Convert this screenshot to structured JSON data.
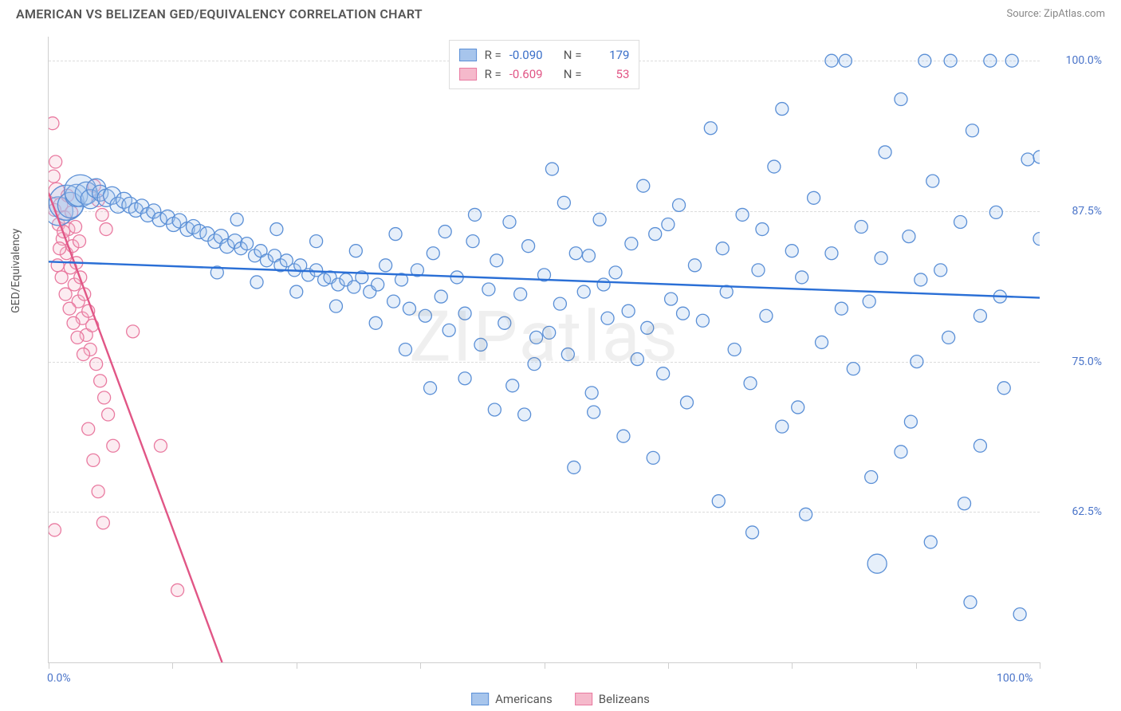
{
  "title": "AMERICAN VS BELIZEAN GED/EQUIVALENCY CORRELATION CHART",
  "source": "Source: ZipAtlas.com",
  "watermark": "ZIPatlas",
  "ylabel": "GED/Equivalency",
  "chart": {
    "type": "scatter",
    "background_color": "#ffffff",
    "grid_color": "#dcdcdc",
    "axis_color": "#cfcfcf",
    "tick_label_color": "#4a74c9",
    "xlim": [
      0,
      100
    ],
    "ylim": [
      50,
      102
    ],
    "x_ticks": [
      0,
      12.5,
      25,
      37.5,
      50,
      62.5,
      75,
      87.5,
      100
    ],
    "x_tick_labels": {
      "0": "0.0%",
      "100": "100.0%"
    },
    "y_gridlines": [
      62.5,
      75,
      87.5,
      100
    ],
    "y_tick_labels": {
      "62.5": "62.5%",
      "75": "75.0%",
      "87.5": "87.5%",
      "100": "100.0%"
    },
    "marker_stroke_width": 1.3,
    "marker_fill_opacity": 0.28,
    "trend_line_width": 2.4,
    "label_fontsize": 14,
    "title_fontsize": 16
  },
  "legend_top": {
    "border_color": "#dddddd",
    "rows": [
      {
        "swatch_fill": "#a7c5ec",
        "swatch_border": "#5a8fd6",
        "r_label": "R =",
        "r_value": "-0.090",
        "r_color": "#3a6fc9",
        "n_label": "N =",
        "n_value": "179",
        "n_color": "#3a6fc9"
      },
      {
        "swatch_fill": "#f5b9cb",
        "swatch_border": "#e97aa0",
        "r_label": "R =",
        "r_value": "-0.609",
        "r_color": "#e15686",
        "n_label": "N =",
        "n_value": "53",
        "n_color": "#e15686"
      }
    ]
  },
  "legend_bottom": {
    "items": [
      {
        "swatch_fill": "#a7c5ec",
        "swatch_border": "#5a8fd6",
        "label": "Americans"
      },
      {
        "swatch_fill": "#f5b9cb",
        "swatch_border": "#e97aa0",
        "label": "Belizeans"
      }
    ]
  },
  "series": {
    "americans": {
      "fill": "#a7c5ec",
      "stroke": "#5a8fd6",
      "trend_color": "#2a6fd6",
      "trend": {
        "x1": 0,
        "y1": 83.3,
        "x2": 100,
        "y2": 80.3
      },
      "default_r": 8,
      "points": [
        [
          1.0,
          87.5,
          18
        ],
        [
          1.8,
          88.2,
          22
        ],
        [
          2.2,
          88.0,
          16
        ],
        [
          2.8,
          88.8,
          14
        ],
        [
          3.2,
          89.2,
          20
        ],
        [
          3.8,
          89.0,
          14
        ],
        [
          4.2,
          88.5,
          12
        ],
        [
          4.8,
          89.4,
          12
        ],
        [
          5.2,
          89.0,
          10
        ],
        [
          5.8,
          88.6,
          11
        ],
        [
          6.4,
          88.8,
          11
        ],
        [
          7.0,
          88.0,
          10
        ],
        [
          7.6,
          88.4,
          10
        ],
        [
          8.2,
          88.0,
          10
        ],
        [
          8.8,
          87.6,
          9
        ],
        [
          9.4,
          87.9,
          9
        ],
        [
          10.0,
          87.2,
          9
        ],
        [
          10.6,
          87.5,
          9
        ],
        [
          11.2,
          86.8,
          9
        ],
        [
          12.0,
          87.0,
          9
        ],
        [
          12.6,
          86.4,
          9
        ],
        [
          13.2,
          86.7,
          9
        ],
        [
          14.0,
          86.0,
          9
        ],
        [
          14.6,
          86.2,
          9
        ],
        [
          15.2,
          85.8,
          9
        ],
        [
          16.0,
          85.6,
          9
        ],
        [
          16.8,
          85.0,
          9
        ],
        [
          17.4,
          85.4,
          9
        ],
        [
          18.0,
          84.6,
          9
        ],
        [
          18.8,
          85.0,
          9
        ],
        [
          19.4,
          84.4,
          8
        ],
        [
          20.0,
          84.8,
          8
        ],
        [
          20.8,
          83.8,
          8
        ],
        [
          21.4,
          84.2,
          8
        ],
        [
          22.0,
          83.4,
          8
        ],
        [
          22.8,
          83.8,
          8
        ],
        [
          23.4,
          83.0,
          8
        ],
        [
          24.0,
          83.4,
          8
        ],
        [
          24.8,
          82.6,
          8
        ],
        [
          25.4,
          83.0,
          8
        ],
        [
          26.2,
          82.2,
          8
        ],
        [
          27.0,
          82.6,
          8
        ],
        [
          27.8,
          81.8,
          8
        ],
        [
          28.4,
          82.0,
          8
        ],
        [
          29.2,
          81.4,
          8
        ],
        [
          30.0,
          81.8,
          8
        ],
        [
          30.8,
          81.2,
          8
        ],
        [
          31.6,
          82.0,
          8
        ],
        [
          32.4,
          80.8,
          8
        ],
        [
          33.2,
          81.4,
          8
        ],
        [
          34.0,
          83.0,
          8
        ],
        [
          34.8,
          80.0,
          8
        ],
        [
          35.6,
          81.8,
          8
        ],
        [
          36.4,
          79.4,
          8
        ],
        [
          37.2,
          82.6,
          8
        ],
        [
          38.0,
          78.8,
          8
        ],
        [
          38.8,
          84.0,
          8
        ],
        [
          39.6,
          80.4,
          8
        ],
        [
          40.4,
          77.6,
          8
        ],
        [
          41.2,
          82.0,
          8
        ],
        [
          42.0,
          79.0,
          8
        ],
        [
          42.8,
          85.0,
          8
        ],
        [
          43.6,
          76.4,
          8
        ],
        [
          44.4,
          81.0,
          8
        ],
        [
          45.2,
          83.4,
          8
        ],
        [
          46.0,
          78.2,
          8
        ],
        [
          46.8,
          73.0,
          8
        ],
        [
          47.6,
          80.6,
          8
        ],
        [
          48.4,
          84.6,
          8
        ],
        [
          49.2,
          77.0,
          8
        ],
        [
          50.0,
          82.2,
          8
        ],
        [
          50.8,
          91.0,
          8
        ],
        [
          51.6,
          79.8,
          8
        ],
        [
          52.4,
          75.6,
          8
        ],
        [
          53.2,
          84.0,
          8
        ],
        [
          54.0,
          80.8,
          8
        ],
        [
          54.8,
          72.4,
          8
        ],
        [
          55.6,
          86.8,
          8
        ],
        [
          56.4,
          78.6,
          8
        ],
        [
          57.2,
          82.4,
          8
        ],
        [
          58.0,
          68.8,
          8
        ],
        [
          60.4,
          77.8,
          8
        ],
        [
          61.2,
          85.6,
          8
        ],
        [
          62.0,
          74.0,
          8
        ],
        [
          62.8,
          80.2,
          8
        ],
        [
          63.6,
          88.0,
          8
        ],
        [
          64.4,
          71.6,
          8
        ],
        [
          65.2,
          83.0,
          8
        ],
        [
          66.0,
          78.4,
          8
        ],
        [
          67.6,
          63.4,
          8
        ],
        [
          68.4,
          80.8,
          8
        ],
        [
          69.2,
          76.0,
          8
        ],
        [
          70.0,
          87.2,
          8
        ],
        [
          70.8,
          73.2,
          8
        ],
        [
          71.6,
          82.6,
          8
        ],
        [
          72.4,
          78.8,
          8
        ],
        [
          73.2,
          91.2,
          8
        ],
        [
          74.0,
          69.6,
          8
        ],
        [
          76.4,
          62.3,
          8
        ],
        [
          77.2,
          88.6,
          8
        ],
        [
          78.0,
          76.6,
          8
        ],
        [
          80.4,
          100.0,
          8
        ],
        [
          81.2,
          74.4,
          8
        ],
        [
          82.0,
          86.2,
          8
        ],
        [
          82.8,
          80.0,
          8
        ],
        [
          83.6,
          58.2,
          12
        ],
        [
          84.4,
          92.4,
          8
        ],
        [
          86.0,
          96.8,
          8
        ],
        [
          86.0,
          67.5,
          8
        ],
        [
          86.8,
          85.4,
          8
        ],
        [
          87.6,
          75.0,
          8
        ],
        [
          88.4,
          100.0,
          8
        ],
        [
          89.2,
          90.0,
          8
        ],
        [
          90.0,
          82.6,
          8
        ],
        [
          92.4,
          63.2,
          8
        ],
        [
          93.2,
          94.2,
          8
        ],
        [
          94.0,
          78.8,
          8
        ],
        [
          79.0,
          84.0,
          8
        ],
        [
          95.6,
          87.4,
          8
        ],
        [
          96.4,
          72.8,
          8
        ],
        [
          97.2,
          100.0,
          8
        ],
        [
          98.0,
          54.0,
          8
        ],
        [
          98.8,
          91.8,
          8
        ],
        [
          100.0,
          85.2,
          8
        ],
        [
          100.0,
          92.0,
          8
        ],
        [
          58.8,
          84.8,
          8
        ],
        [
          75.0,
          84.2,
          8
        ],
        [
          66.8,
          94.4,
          8
        ],
        [
          71.0,
          60.8,
          8
        ],
        [
          93.0,
          55.0,
          8
        ],
        [
          48.0,
          70.6,
          8
        ],
        [
          52.0,
          88.2,
          8
        ],
        [
          56.0,
          81.4,
          8
        ],
        [
          60.0,
          89.6,
          8
        ],
        [
          64.0,
          79.0,
          8
        ],
        [
          68.0,
          84.4,
          8
        ],
        [
          72.0,
          86.0,
          8
        ],
        [
          76.0,
          82.0,
          8
        ],
        [
          80.0,
          79.4,
          8
        ],
        [
          84.0,
          83.6,
          8
        ],
        [
          88.0,
          81.8,
          8
        ],
        [
          92.0,
          86.6,
          8
        ],
        [
          96.0,
          80.4,
          8
        ],
        [
          45.0,
          71.0,
          8
        ],
        [
          43.0,
          87.2,
          8
        ],
        [
          38.5,
          72.8,
          8
        ],
        [
          35.0,
          85.6,
          8
        ],
        [
          33.0,
          78.2,
          8
        ],
        [
          31.0,
          84.2,
          8
        ],
        [
          29.0,
          79.6,
          8
        ],
        [
          27.0,
          85.0,
          8
        ],
        [
          25.0,
          80.8,
          8
        ],
        [
          23.0,
          86.0,
          8
        ],
        [
          21.0,
          81.6,
          8
        ],
        [
          19.0,
          86.8,
          8
        ],
        [
          17.0,
          82.4,
          8
        ],
        [
          91.0,
          100.0,
          8
        ],
        [
          95.0,
          100.0,
          8
        ],
        [
          79.0,
          100.0,
          8
        ],
        [
          74.0,
          96.0,
          8
        ],
        [
          87.0,
          70.0,
          8
        ],
        [
          94.0,
          68.0,
          8
        ],
        [
          59.4,
          75.2,
          8
        ],
        [
          55.0,
          70.8,
          8
        ],
        [
          61.0,
          67.0,
          8
        ],
        [
          75.6,
          71.2,
          8
        ],
        [
          83.0,
          65.4,
          8
        ],
        [
          90.8,
          77.0,
          8
        ],
        [
          53.0,
          66.2,
          8
        ],
        [
          49.0,
          74.8,
          8
        ],
        [
          40.0,
          85.8,
          8
        ],
        [
          36.0,
          76.0,
          8
        ],
        [
          42.0,
          73.6,
          8
        ],
        [
          89.0,
          60.0,
          8
        ],
        [
          46.5,
          86.6,
          8
        ],
        [
          50.5,
          77.4,
          8
        ],
        [
          54.5,
          83.8,
          8
        ],
        [
          58.5,
          79.2,
          8
        ],
        [
          62.5,
          86.4,
          8
        ]
      ]
    },
    "belizeans": {
      "fill": "#f5b9cb",
      "stroke": "#e97aa0",
      "trend_color": "#e15686",
      "trend": {
        "x1": 0,
        "y1": 89.0,
        "x2": 17.5,
        "y2": 50.0
      },
      "default_r": 8,
      "points": [
        [
          0.4,
          94.8,
          8
        ],
        [
          0.6,
          87.6,
          8
        ],
        [
          0.8,
          89.2,
          10
        ],
        [
          1.0,
          86.4,
          8
        ],
        [
          1.2,
          88.0,
          9
        ],
        [
          1.4,
          85.2,
          8
        ],
        [
          1.6,
          87.0,
          8
        ],
        [
          1.8,
          84.0,
          8
        ],
        [
          2.0,
          86.0,
          8
        ],
        [
          2.2,
          82.8,
          8
        ],
        [
          2.4,
          84.6,
          8
        ],
        [
          2.6,
          81.4,
          8
        ],
        [
          2.8,
          83.2,
          8
        ],
        [
          3.0,
          80.0,
          8
        ],
        [
          3.2,
          82.0,
          8
        ],
        [
          3.4,
          78.6,
          8
        ],
        [
          3.6,
          80.6,
          8
        ],
        [
          3.8,
          77.2,
          8
        ],
        [
          4.0,
          79.2,
          8
        ],
        [
          4.2,
          76.0,
          8
        ],
        [
          4.4,
          78.0,
          8
        ],
        [
          4.6,
          89.6,
          8
        ],
        [
          4.8,
          74.8,
          8
        ],
        [
          5.0,
          88.4,
          8
        ],
        [
          5.2,
          73.4,
          8
        ],
        [
          5.4,
          87.2,
          8
        ],
        [
          5.6,
          72.0,
          8
        ],
        [
          5.8,
          86.0,
          8
        ],
        [
          6.0,
          70.6,
          8
        ],
        [
          0.5,
          90.4,
          8
        ],
        [
          0.7,
          91.6,
          8
        ],
        [
          0.9,
          83.0,
          8
        ],
        [
          1.1,
          84.4,
          8
        ],
        [
          1.3,
          82.0,
          8
        ],
        [
          1.5,
          85.8,
          8
        ],
        [
          1.7,
          80.6,
          8
        ],
        [
          1.9,
          88.8,
          8
        ],
        [
          2.1,
          79.4,
          8
        ],
        [
          2.3,
          87.4,
          8
        ],
        [
          2.5,
          78.2,
          8
        ],
        [
          2.7,
          86.2,
          8
        ],
        [
          2.9,
          77.0,
          8
        ],
        [
          3.1,
          85.0,
          8
        ],
        [
          3.5,
          75.6,
          8
        ],
        [
          4.0,
          69.4,
          8
        ],
        [
          4.5,
          66.8,
          8
        ],
        [
          5.0,
          64.2,
          8
        ],
        [
          5.5,
          61.6,
          8
        ],
        [
          6.5,
          68.0,
          8
        ],
        [
          0.6,
          61.0,
          8
        ],
        [
          8.5,
          77.5,
          8
        ],
        [
          11.3,
          68.0,
          8
        ],
        [
          13.0,
          56.0,
          8
        ]
      ]
    }
  }
}
